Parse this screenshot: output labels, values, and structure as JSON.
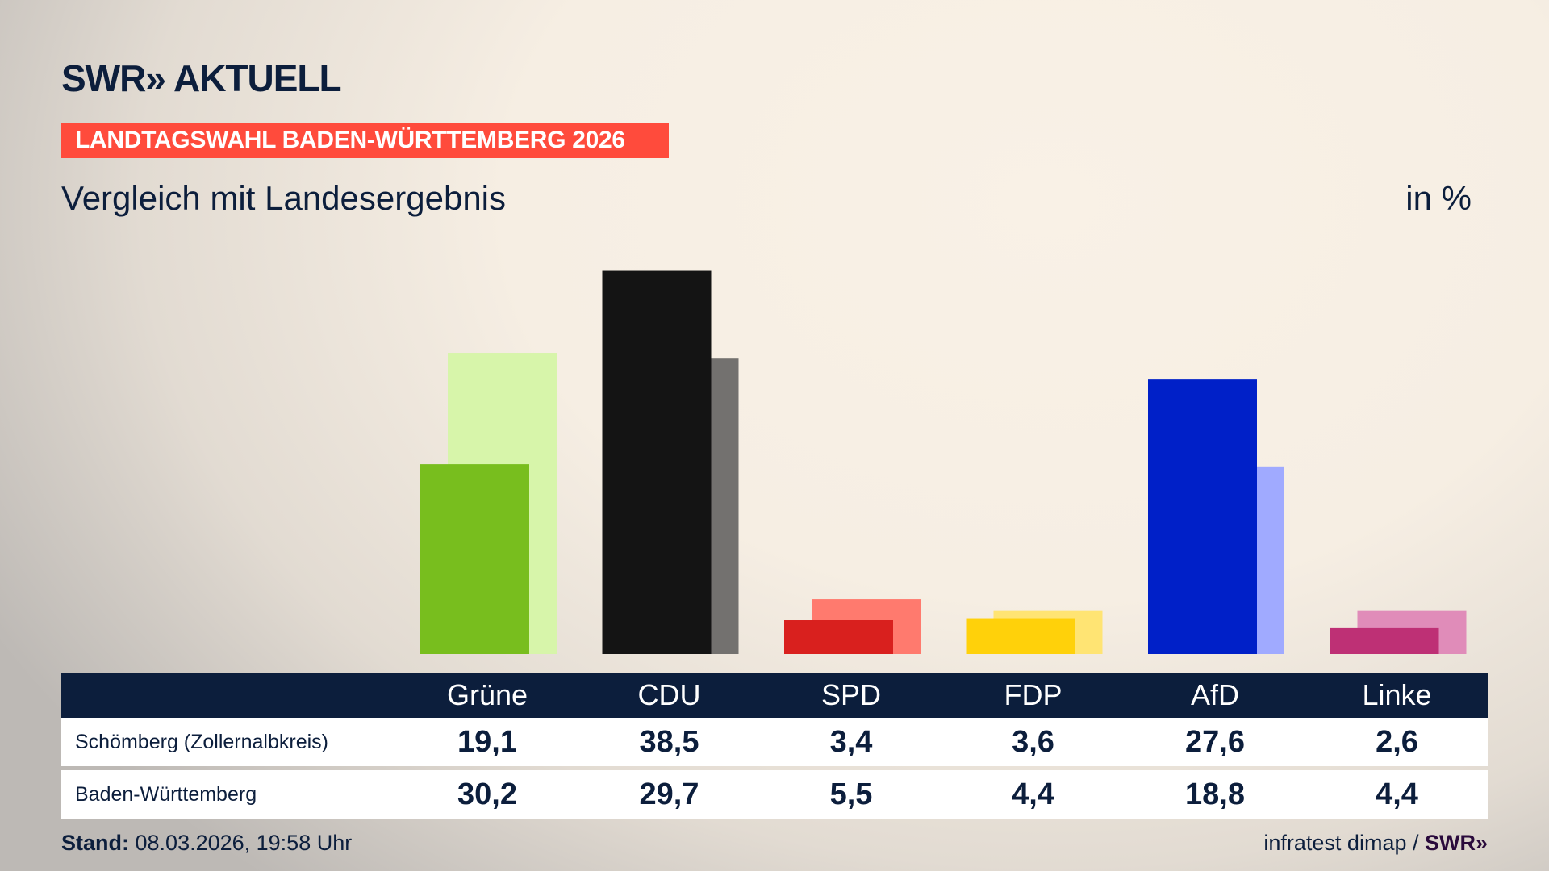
{
  "header": {
    "logo": "SWR» AKTUELL",
    "banner": "LANDTAGSWAHL BADEN-WÜRTTEMBERG 2026",
    "subtitle": "Vergleich mit Landesergebnis",
    "unit": "in %"
  },
  "chart_data": {
    "type": "bar",
    "categories": [
      "Grüne",
      "CDU",
      "SPD",
      "FDP",
      "AfD",
      "Linke"
    ],
    "series": [
      {
        "name": "Schömberg (Zollernalbkreis)",
        "values": [
          19.1,
          38.5,
          3.4,
          3.6,
          27.6,
          2.6
        ],
        "colors": [
          "#78be1e",
          "#141414",
          "#d9201e",
          "#ffd10a",
          "#0020c8",
          "#be3075"
        ]
      },
      {
        "name": "Baden-Württemberg",
        "values": [
          30.2,
          29.7,
          5.5,
          4.4,
          18.8,
          4.4
        ],
        "colors": [
          "#d7f5aa",
          "#73716f",
          "#ff7a6e",
          "#ffe473",
          "#a0aaff",
          "#e08cb9"
        ]
      }
    ],
    "ylim": [
      0,
      40
    ],
    "grid": false
  },
  "footer": {
    "stand_label": "Stand:",
    "stand_value": "08.03.2026, 19:58 Uhr",
    "source": "infratest dimap / ",
    "source_logo": "SWR»"
  }
}
